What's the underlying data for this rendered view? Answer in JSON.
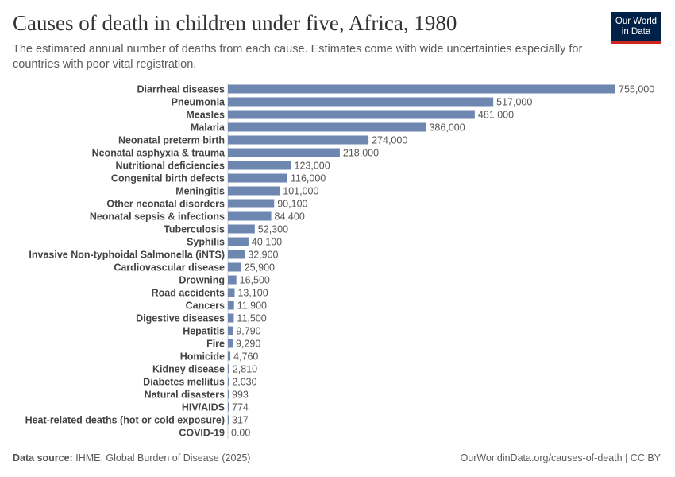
{
  "header": {
    "title": "Causes of death in children under five, Africa, 1980",
    "subtitle": "The estimated annual number of deaths from each cause. Estimates come with wide uncertainties especially for countries with poor vital registration.",
    "logo_text": "Our World in Data"
  },
  "footer": {
    "source_label": "Data source:",
    "source": "IHME, Global Burden of Disease (2025)",
    "url": "OurWorldinData.org/causes-of-death | CC BY"
  },
  "chart_data": {
    "type": "bar",
    "orientation": "horizontal",
    "bar_color": "#6d87b0",
    "categories": [
      "Diarrheal diseases",
      "Pneumonia",
      "Measles",
      "Malaria",
      "Neonatal preterm birth",
      "Neonatal asphyxia & trauma",
      "Nutritional deficiencies",
      "Congenital birth defects",
      "Meningitis",
      "Other neonatal disorders",
      "Neonatal sepsis & infections",
      "Tuberculosis",
      "Syphilis",
      "Invasive Non-typhoidal Salmonella (iNTS)",
      "Cardiovascular disease",
      "Drowning",
      "Road accidents",
      "Cancers",
      "Digestive diseases",
      "Hepatitis",
      "Fire",
      "Homicide",
      "Kidney disease",
      "Diabetes mellitus",
      "Natural disasters",
      "HIV/AIDS",
      "Heat-related deaths (hot or cold exposure)",
      "COVID-19"
    ],
    "values": [
      755000,
      517000,
      481000,
      386000,
      274000,
      218000,
      123000,
      116000,
      101000,
      90100,
      84400,
      52300,
      40100,
      32900,
      25900,
      16500,
      13100,
      11900,
      11500,
      9790,
      9290,
      4760,
      2810,
      2030,
      993,
      774,
      317,
      0
    ],
    "labels": [
      "755,000",
      "517,000",
      "481,000",
      "386,000",
      "274,000",
      "218,000",
      "123,000",
      "116,000",
      "101,000",
      "90,100",
      "84,400",
      "52,300",
      "40,100",
      "32,900",
      "25,900",
      "16,500",
      "13,100",
      "11,900",
      "11,500",
      "9,790",
      "9,290",
      "4,760",
      "2,810",
      "2,030",
      "993",
      "774",
      "317",
      "0.00"
    ]
  }
}
